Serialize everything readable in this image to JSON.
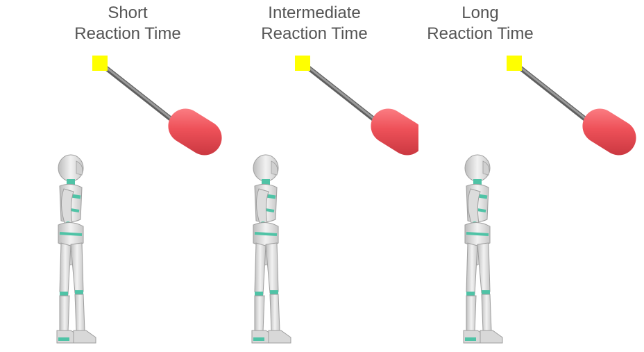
{
  "panels": [
    {
      "line1": "Short",
      "line2": "Reaction Time"
    },
    {
      "line1": "Intermediate",
      "line2": "Reaction Time"
    },
    {
      "line1": "Long",
      "line2": "Reaction Time"
    }
  ],
  "colors": {
    "pivot": "#FFFF00",
    "rod": "#7a7a7a",
    "ball": "#EE5159",
    "robot_body": "#e4e4e4",
    "robot_joint": "#4fc3a6"
  }
}
